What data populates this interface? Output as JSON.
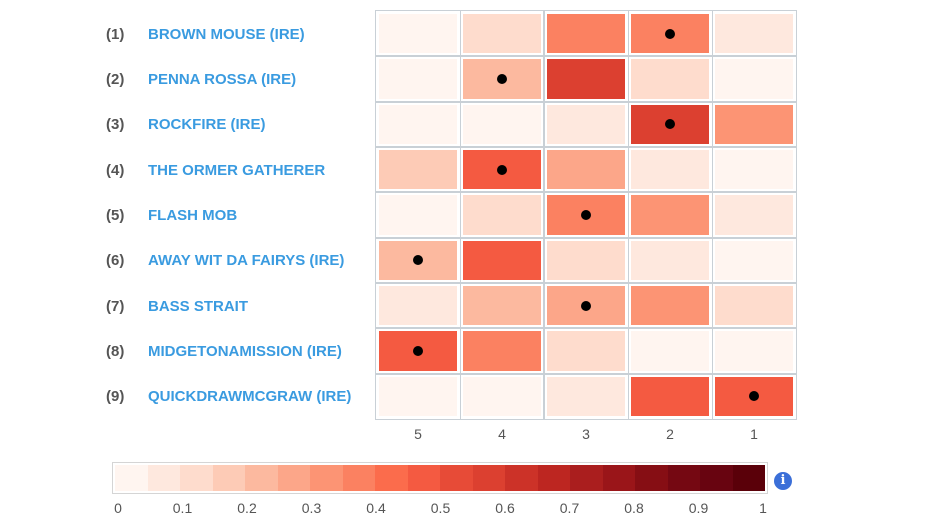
{
  "chart_data": {
    "type": "heatmap",
    "x_categories": [
      "5",
      "4",
      "3",
      "2",
      "1"
    ],
    "rows": [
      {
        "rank": "(1)",
        "name": "BROWN MOUSE (IRE)",
        "values": [
          0.02,
          0.12,
          0.37,
          0.37,
          0.08
        ],
        "marked": "2"
      },
      {
        "rank": "(2)",
        "name": "PENNA ROSSA (IRE)",
        "values": [
          0.02,
          0.22,
          0.57,
          0.12,
          0.02
        ],
        "marked": "4"
      },
      {
        "rank": "(3)",
        "name": "ROCKFIRE (IRE)",
        "values": [
          0.02,
          0.02,
          0.08,
          0.57,
          0.33
        ],
        "marked": "2"
      },
      {
        "rank": "(4)",
        "name": "THE ORMER GATHERER",
        "values": [
          0.18,
          0.47,
          0.27,
          0.08,
          0.02
        ],
        "marked": "4"
      },
      {
        "rank": "(5)",
        "name": "FLASH MOB",
        "values": [
          0.02,
          0.12,
          0.37,
          0.32,
          0.07
        ],
        "marked": "3"
      },
      {
        "rank": "(6)",
        "name": "AWAY WIT DA FAIRYS (IRE)",
        "values": [
          0.22,
          0.47,
          0.12,
          0.08,
          0.02
        ],
        "marked": "5"
      },
      {
        "rank": "(7)",
        "name": "BASS STRAIT",
        "values": [
          0.07,
          0.22,
          0.28,
          0.32,
          0.12
        ],
        "marked": "3"
      },
      {
        "rank": "(8)",
        "name": "MIDGETONAMISSION (IRE)",
        "values": [
          0.47,
          0.37,
          0.12,
          0.02,
          0.02
        ],
        "marked": "5"
      },
      {
        "rank": "(9)",
        "name": "QUICKDRAWMCGRAW (IRE)",
        "values": [
          0.02,
          0.02,
          0.08,
          0.47,
          0.47
        ],
        "marked": "1"
      }
    ],
    "color_scale": {
      "range": [
        0,
        1
      ],
      "step": 0.05,
      "ticks": [
        "0",
        "0.1",
        "0.2",
        "0.3",
        "0.4",
        "0.5",
        "0.6",
        "0.7",
        "0.8",
        "0.9",
        "1"
      ],
      "colors": [
        "#fff5f0",
        "#fee8de",
        "#fedccd",
        "#fdcbb6",
        "#fcb99f",
        "#fca689",
        "#fc9474",
        "#fb8161",
        "#fb6c4c",
        "#f45a41",
        "#e74b37",
        "#dc4030",
        "#cc3228",
        "#bd2621",
        "#aa1e1e",
        "#9a1519",
        "#860e14",
        "#750812",
        "#680410",
        "#5a0009"
      ]
    },
    "legend_placement": "bottom",
    "marker_color": "#000000",
    "label_color": "#3a9be0",
    "info_icon": "info-icon"
  }
}
